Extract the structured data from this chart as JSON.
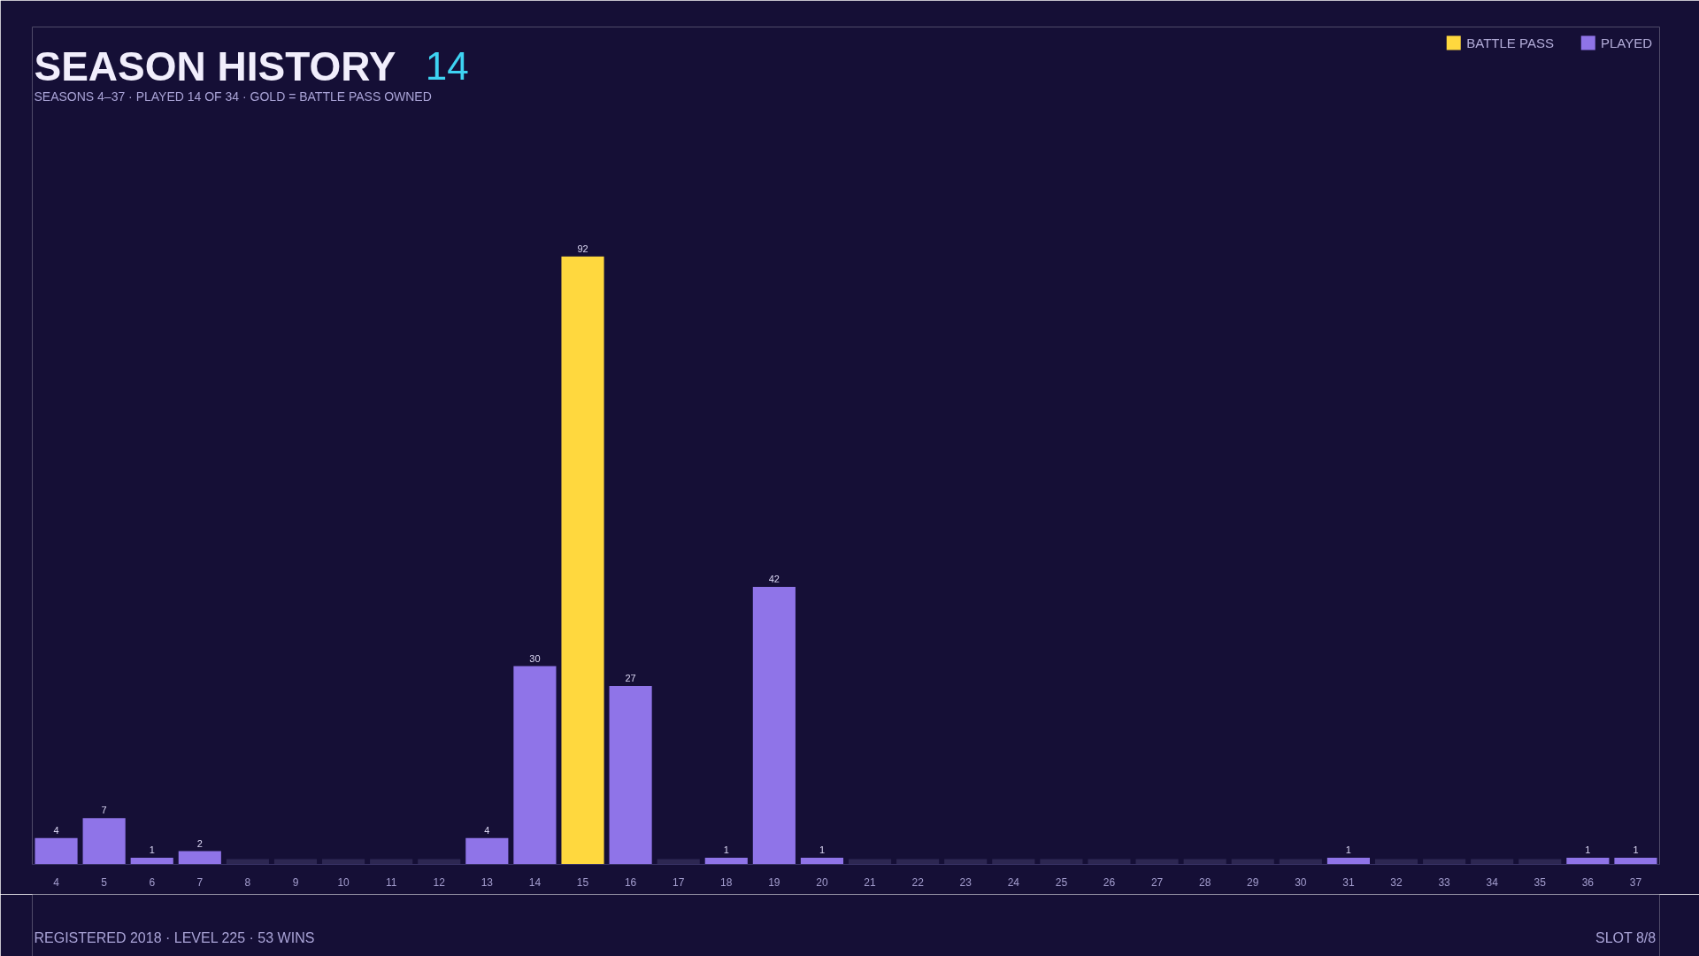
{
  "chart_data": {
    "type": "bar",
    "title": "SEASON HISTORY",
    "subtitle": "SEASONS 4–37  ·  PLAYED 14 OF 34  ·  GOLD = BATTLE PASS OWNED",
    "annotations": [
      "14",
      "REGISTERED 2018  ·  LEVEL 225  ·  53 WINS",
      "SLOT 8/8"
    ],
    "categories": [
      "4",
      "5",
      "6",
      "7",
      "8",
      "9",
      "10",
      "11",
      "12",
      "13",
      "14",
      "15",
      "16",
      "17",
      "18",
      "19",
      "20",
      "21",
      "22",
      "23",
      "24",
      "25",
      "26",
      "27",
      "28",
      "29",
      "30",
      "31",
      "32",
      "33",
      "34",
      "35",
      "36",
      "37"
    ],
    "series": [
      {
        "name": "BATTLE PASS",
        "color": "#ffd83e",
        "values": [
          null,
          null,
          null,
          null,
          null,
          null,
          null,
          null,
          null,
          null,
          null,
          92,
          null,
          null,
          null,
          null,
          null,
          null,
          null,
          null,
          null,
          null,
          null,
          null,
          null,
          null,
          null,
          null,
          null,
          null,
          null,
          null,
          null,
          null
        ],
        "value_labels": [
          null,
          null,
          null,
          null,
          null,
          null,
          null,
          null,
          null,
          null,
          null,
          "92",
          null,
          null,
          null,
          null,
          null,
          null,
          null,
          null,
          null,
          null,
          null,
          null,
          null,
          null,
          null,
          null,
          null,
          null,
          null,
          null,
          null,
          null
        ]
      },
      {
        "name": "PLAYED",
        "color": "#8f74e8",
        "values": [
          4,
          7,
          1,
          2,
          null,
          null,
          null,
          null,
          null,
          4,
          30,
          null,
          27,
          null,
          1,
          42,
          1,
          null,
          null,
          null,
          null,
          null,
          null,
          null,
          null,
          null,
          null,
          1,
          null,
          null,
          null,
          null,
          1,
          1
        ],
        "value_labels": [
          "4",
          "7",
          "1",
          "2",
          null,
          null,
          null,
          null,
          null,
          "4",
          "30",
          null,
          "27",
          null,
          "1",
          "42",
          "1",
          null,
          null,
          null,
          null,
          null,
          null,
          null,
          null,
          null,
          null,
          "1",
          null,
          null,
          null,
          null,
          "1",
          "1"
        ]
      },
      {
        "color": "#2d2752",
        "values": [
          null,
          null,
          null,
          null,
          0.8,
          0.8,
          0.8,
          0.8,
          0.8,
          null,
          null,
          null,
          null,
          0.8,
          null,
          null,
          null,
          0.8,
          0.8,
          0.8,
          0.8,
          0.8,
          0.8,
          0.8,
          0.8,
          0.8,
          0.8,
          null,
          0.8,
          0.8,
          0.8,
          0.8,
          null,
          null
        ]
      }
    ],
    "legend": "top right",
    "tick_labels": "x"
  }
}
